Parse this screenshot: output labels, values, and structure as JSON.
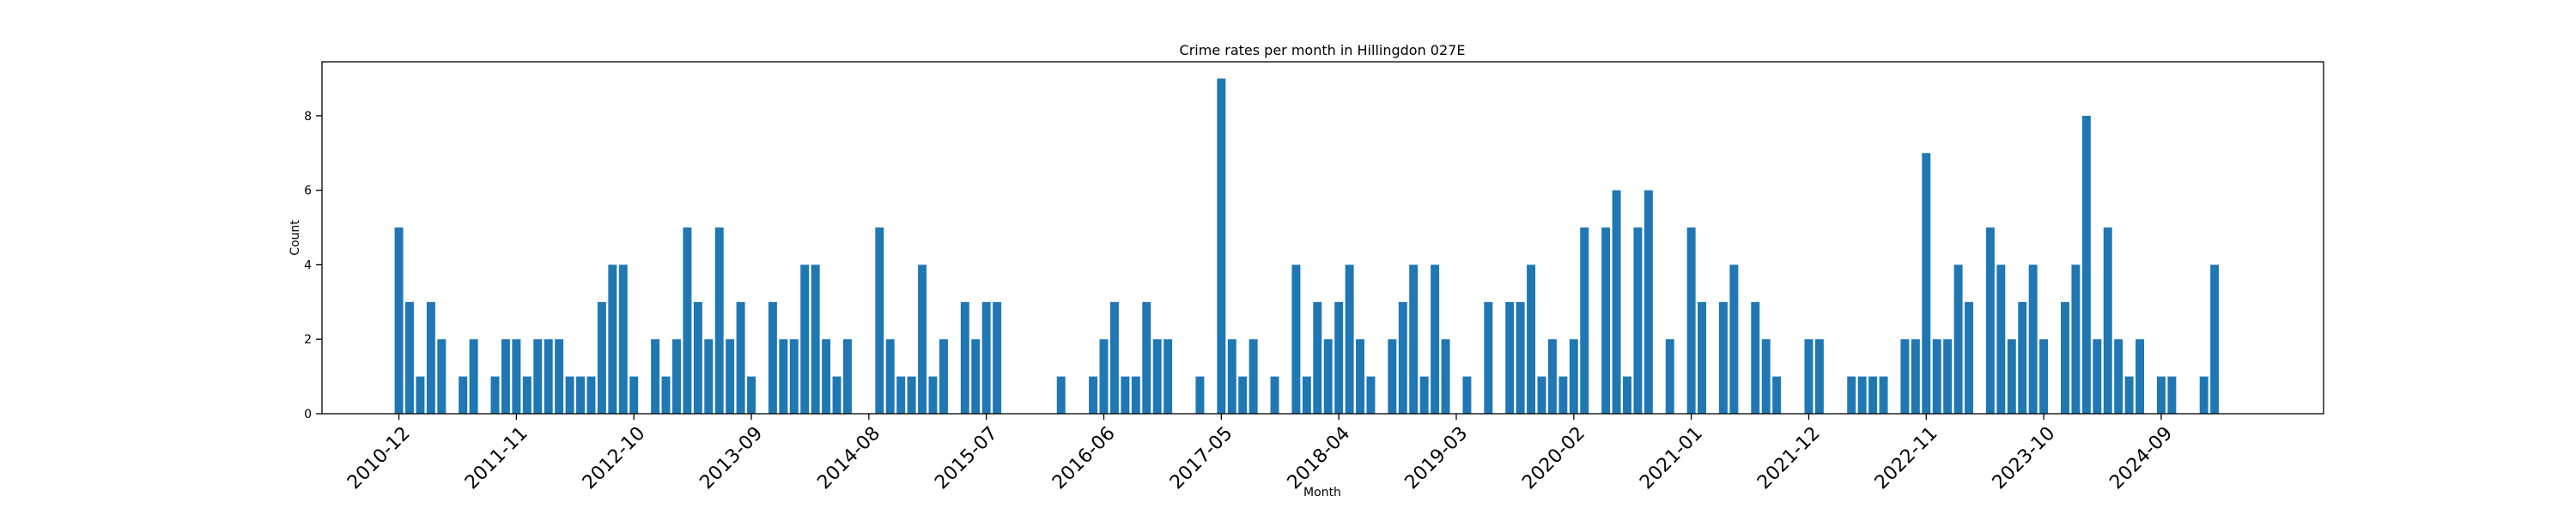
{
  "chart_data": {
    "type": "bar",
    "title": "Crime rates per month in Hillingdon 027E",
    "xlabel": "Month",
    "ylabel": "Count",
    "ylim": [
      0,
      9.45
    ],
    "yticks": [
      0,
      2,
      4,
      6,
      8
    ],
    "color": "#1f77b4",
    "x_start": "2010-12",
    "x_end": "2025-05",
    "xticks": [
      "2010-12",
      "2011-11",
      "2012-10",
      "2013-09",
      "2014-08",
      "2015-07",
      "2016-06",
      "2017-05",
      "2018-04",
      "2019-03",
      "2020-02",
      "2021-01",
      "2021-12",
      "2022-11",
      "2023-10",
      "2024-09"
    ],
    "data": [
      [
        "2010-12",
        5
      ],
      [
        "2011-01",
        3
      ],
      [
        "2011-02",
        1
      ],
      [
        "2011-03",
        3
      ],
      [
        "2011-04",
        2
      ],
      [
        "2011-06",
        1
      ],
      [
        "2011-07",
        2
      ],
      [
        "2011-09",
        1
      ],
      [
        "2011-10",
        2
      ],
      [
        "2011-11",
        2
      ],
      [
        "2011-12",
        1
      ],
      [
        "2012-01",
        2
      ],
      [
        "2012-02",
        2
      ],
      [
        "2012-03",
        2
      ],
      [
        "2012-04",
        1
      ],
      [
        "2012-05",
        1
      ],
      [
        "2012-06",
        1
      ],
      [
        "2012-07",
        3
      ],
      [
        "2012-08",
        4
      ],
      [
        "2012-09",
        4
      ],
      [
        "2012-10",
        1
      ],
      [
        "2012-12",
        2
      ],
      [
        "2013-01",
        1
      ],
      [
        "2013-02",
        2
      ],
      [
        "2013-03",
        5
      ],
      [
        "2013-04",
        3
      ],
      [
        "2013-05",
        2
      ],
      [
        "2013-06",
        5
      ],
      [
        "2013-07",
        2
      ],
      [
        "2013-08",
        3
      ],
      [
        "2013-09",
        1
      ],
      [
        "2013-11",
        3
      ],
      [
        "2013-12",
        2
      ],
      [
        "2014-01",
        2
      ],
      [
        "2014-02",
        4
      ],
      [
        "2014-03",
        4
      ],
      [
        "2014-04",
        2
      ],
      [
        "2014-05",
        1
      ],
      [
        "2014-06",
        2
      ],
      [
        "2014-09",
        5
      ],
      [
        "2014-10",
        2
      ],
      [
        "2014-11",
        1
      ],
      [
        "2014-12",
        1
      ],
      [
        "2015-01",
        4
      ],
      [
        "2015-02",
        1
      ],
      [
        "2015-03",
        2
      ],
      [
        "2015-05",
        3
      ],
      [
        "2015-06",
        2
      ],
      [
        "2015-07",
        3
      ],
      [
        "2015-08",
        3
      ],
      [
        "2016-02",
        1
      ],
      [
        "2016-05",
        1
      ],
      [
        "2016-06",
        2
      ],
      [
        "2016-07",
        3
      ],
      [
        "2016-08",
        1
      ],
      [
        "2016-09",
        1
      ],
      [
        "2016-10",
        3
      ],
      [
        "2016-11",
        2
      ],
      [
        "2016-12",
        2
      ],
      [
        "2017-03",
        1
      ],
      [
        "2017-05",
        9
      ],
      [
        "2017-06",
        2
      ],
      [
        "2017-07",
        1
      ],
      [
        "2017-08",
        2
      ],
      [
        "2017-10",
        1
      ],
      [
        "2017-12",
        4
      ],
      [
        "2018-01",
        1
      ],
      [
        "2018-02",
        3
      ],
      [
        "2018-03",
        2
      ],
      [
        "2018-04",
        3
      ],
      [
        "2018-05",
        4
      ],
      [
        "2018-06",
        2
      ],
      [
        "2018-07",
        1
      ],
      [
        "2018-09",
        2
      ],
      [
        "2018-10",
        3
      ],
      [
        "2018-11",
        4
      ],
      [
        "2018-12",
        1
      ],
      [
        "2019-01",
        4
      ],
      [
        "2019-02",
        2
      ],
      [
        "2019-04",
        1
      ],
      [
        "2019-06",
        3
      ],
      [
        "2019-08",
        3
      ],
      [
        "2019-09",
        3
      ],
      [
        "2019-10",
        4
      ],
      [
        "2019-11",
        1
      ],
      [
        "2019-12",
        2
      ],
      [
        "2020-01",
        1
      ],
      [
        "2020-02",
        2
      ],
      [
        "2020-03",
        5
      ],
      [
        "2020-05",
        5
      ],
      [
        "2020-06",
        6
      ],
      [
        "2020-07",
        1
      ],
      [
        "2020-08",
        5
      ],
      [
        "2020-09",
        6
      ],
      [
        "2020-11",
        2
      ],
      [
        "2021-01",
        5
      ],
      [
        "2021-02",
        3
      ],
      [
        "2021-04",
        3
      ],
      [
        "2021-05",
        4
      ],
      [
        "2021-07",
        3
      ],
      [
        "2021-08",
        2
      ],
      [
        "2021-09",
        1
      ],
      [
        "2021-12",
        2
      ],
      [
        "2022-01",
        2
      ],
      [
        "2022-04",
        1
      ],
      [
        "2022-05",
        1
      ],
      [
        "2022-06",
        1
      ],
      [
        "2022-07",
        1
      ],
      [
        "2022-09",
        2
      ],
      [
        "2022-10",
        2
      ],
      [
        "2022-11",
        7
      ],
      [
        "2022-12",
        2
      ],
      [
        "2023-01",
        2
      ],
      [
        "2023-02",
        4
      ],
      [
        "2023-03",
        3
      ],
      [
        "2023-05",
        5
      ],
      [
        "2023-06",
        4
      ],
      [
        "2023-07",
        2
      ],
      [
        "2023-08",
        3
      ],
      [
        "2023-09",
        4
      ],
      [
        "2023-10",
        2
      ],
      [
        "2023-12",
        3
      ],
      [
        "2024-01",
        4
      ],
      [
        "2024-02",
        8
      ],
      [
        "2024-03",
        2
      ],
      [
        "2024-04",
        5
      ],
      [
        "2024-05",
        2
      ],
      [
        "2024-06",
        1
      ],
      [
        "2024-07",
        2
      ],
      [
        "2024-09",
        1
      ],
      [
        "2024-10",
        1
      ],
      [
        "2025-01",
        1
      ],
      [
        "2025-02",
        4
      ]
    ]
  }
}
